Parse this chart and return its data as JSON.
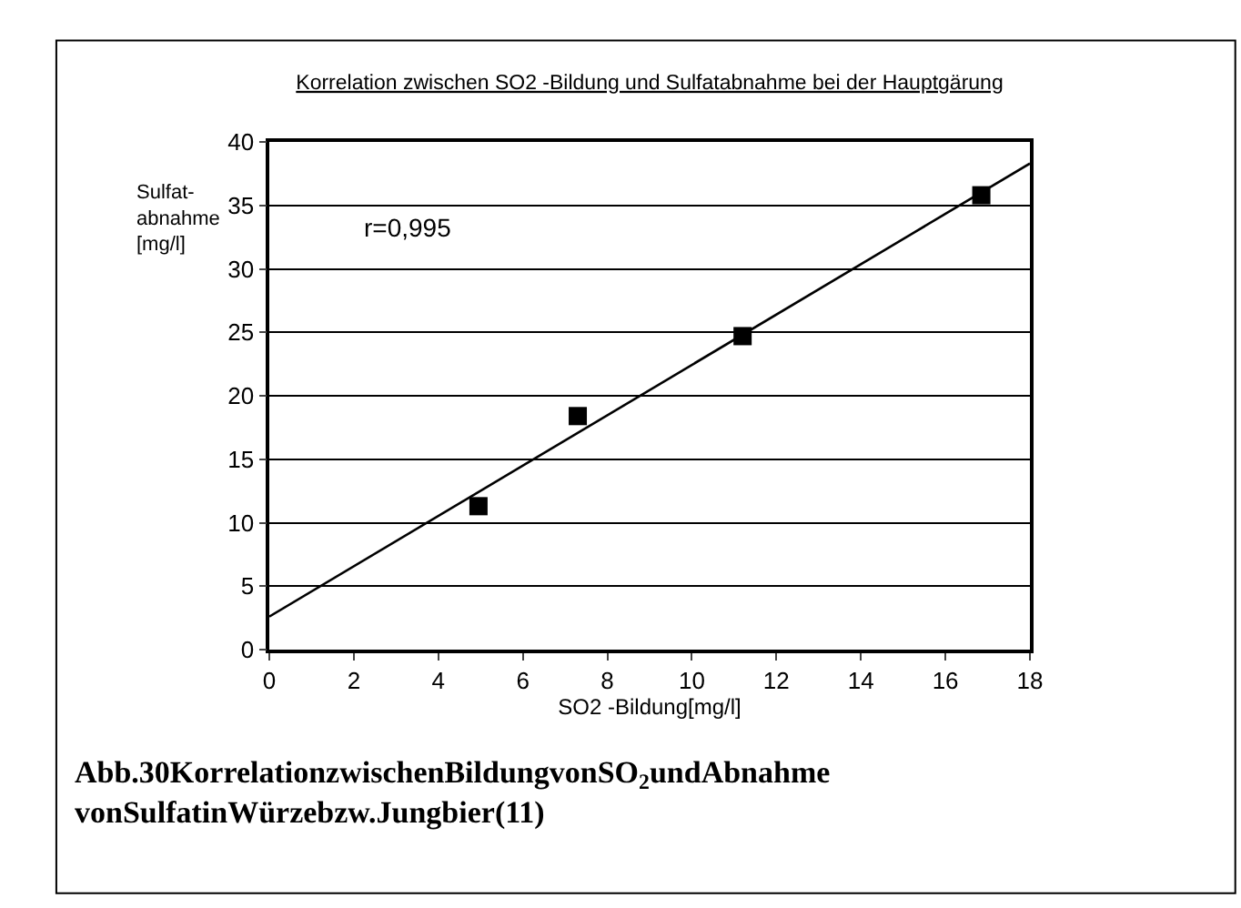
{
  "chart_data": {
    "type": "scatter",
    "title": "Korrelation zwischen SO2 -Bildung und Sulfatabnahme bei der Hauptgärung",
    "xlabel": "SO2 -Bildung[mg/l]",
    "ylabel": "Sulfat-\nabnahme\n[mg/l]",
    "series": [
      {
        "color": "#000000",
        "marker": "square",
        "x": [
          4.95,
          7.3,
          11.2,
          16.85
        ],
        "values": [
          11.3,
          18.4,
          24.7,
          35.8
        ]
      },
      {
        "type": "line",
        "color": "#000000",
        "marker": "none",
        "line_style": "solid",
        "x": [
          0,
          18
        ],
        "values": [
          2.6,
          38.3
        ]
      }
    ],
    "xlim": [
      0,
      18
    ],
    "xticks": [
      0,
      2,
      4,
      6,
      8,
      10,
      12,
      14,
      16,
      18
    ],
    "ylim": [
      0,
      40
    ],
    "yticks": [
      0,
      5,
      10,
      15,
      20,
      25,
      30,
      35,
      40
    ],
    "grid": "y",
    "legend": false,
    "annotations": [
      "r=0,995",
      "Abb.30KorrelationzwischenBildungvonSO$_{2}$undAbnahme\nvonSulfatinWürzebzw.Jungbier(11)"
    ]
  }
}
